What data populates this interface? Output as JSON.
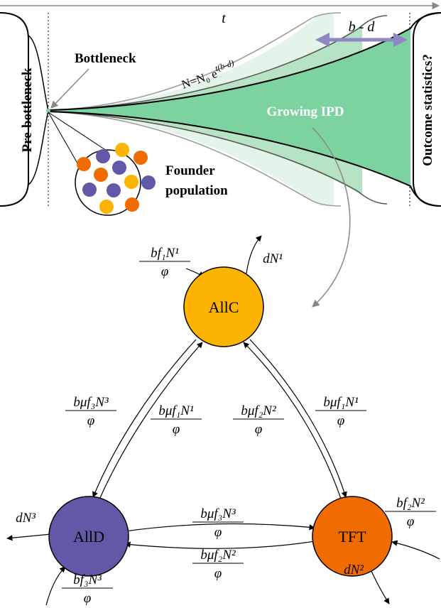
{
  "panel": {
    "time_label": "t",
    "left_label": "Pre-bottleneck",
    "right_label": "Outcome statistics?",
    "bottleneck_label": "Bottleneck",
    "formula_base": "N=N₀ e",
    "formula_exponent": "t(b-d)",
    "rate_label": "b - d",
    "center_label": "Growing IPD",
    "founder_label": [
      "Founder",
      "population"
    ]
  },
  "nodes": [
    {
      "label": "AllC"
    },
    {
      "label": "AllD"
    },
    {
      "label": "TFT"
    }
  ],
  "edge_labels": [
    {
      "numerator": "bf₁N¹",
      "denominator": "φ"
    },
    {
      "text": "dN¹"
    },
    {
      "numerator": "bμf₃N³",
      "denominator": "φ"
    },
    {
      "numerator": "bμf₁N¹",
      "denominator": "φ"
    },
    {
      "numerator": "bμf₂N²",
      "denominator": "φ"
    },
    {
      "numerator": "bμf₁N¹",
      "denominator": "φ"
    },
    {
      "numerator": "bf₂N²",
      "denominator": "φ"
    },
    {
      "text": "dN³"
    },
    {
      "numerator": "bμf₃N³",
      "denominator": "φ"
    },
    {
      "numerator": "bμf₂N²",
      "denominator": "φ"
    },
    {
      "numerator": "bf₃N³",
      "denominator": "φ"
    },
    {
      "text": "dN²"
    }
  ]
}
